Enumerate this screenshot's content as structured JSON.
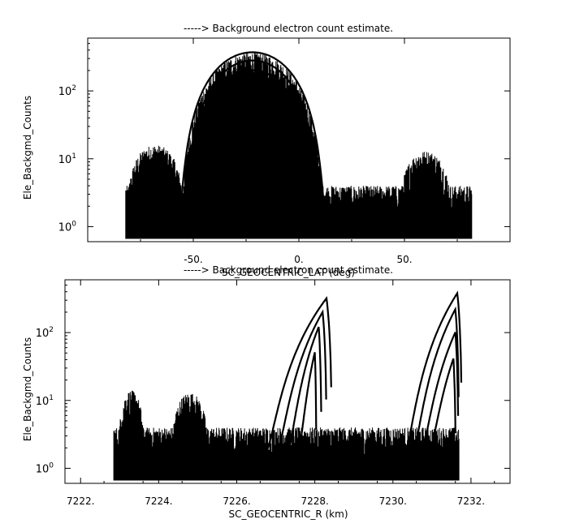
{
  "chart_data": [
    {
      "type": "line",
      "title": "-----> Background electron count estimate.",
      "xlabel": "SC_GEOCENTRIC_LAT (deg)",
      "ylabel": "Ele_Backgmd_Counts",
      "xlim": [
        -100,
        100
      ],
      "ylim": [
        0.6,
        600
      ],
      "yscale": "log",
      "x_ticks": [
        {
          "value": -50,
          "label": "-50."
        },
        {
          "value": 0,
          "label": "0."
        },
        {
          "value": 50,
          "label": "50."
        }
      ],
      "y_ticks": [
        {
          "value": 1,
          "base": "10",
          "exp": "0"
        },
        {
          "value": 10,
          "base": "10",
          "exp": "1"
        },
        {
          "value": 100,
          "base": "10",
          "exp": "2"
        }
      ],
      "series_summary": {
        "x_range": [
          -82,
          82
        ],
        "noise_floor": [
          1,
          4
        ],
        "arcs": [
          {
            "center": -22,
            "half_width": 35,
            "peak": 370
          },
          {
            "center": -22,
            "half_width": 33,
            "peak": 280
          },
          {
            "center": -22,
            "half_width": 31,
            "peak": 200
          },
          {
            "center": -21,
            "half_width": 28,
            "peak": 120
          },
          {
            "center": -20,
            "half_width": 26,
            "peak": 50
          },
          {
            "center": -18,
            "half_width": 24,
            "peak": 25
          },
          {
            "center": -18,
            "half_width": 22,
            "peak": 12
          }
        ],
        "side_bumps": [
          {
            "center": -68,
            "half_width": 14,
            "peak": 15
          },
          {
            "center": 60,
            "half_width": 13,
            "peak": 12
          }
        ]
      },
      "grid": false
    },
    {
      "type": "line",
      "title": "-----> Background electron count estimate.",
      "xlabel": "SC_GEOCENTRIC_R (km)",
      "ylabel": "Ele_Backgmd_Counts",
      "xlim": [
        7221.6,
        7233.0
      ],
      "ylim": [
        0.6,
        600
      ],
      "yscale": "log",
      "x_ticks": [
        {
          "value": 7222,
          "label": "7222."
        },
        {
          "value": 7224,
          "label": "7224."
        },
        {
          "value": 7226,
          "label": "7226."
        },
        {
          "value": 7228,
          "label": "7228."
        },
        {
          "value": 7230,
          "label": "7230."
        },
        {
          "value": 7232,
          "label": "7232."
        }
      ],
      "y_ticks": [
        {
          "value": 1,
          "base": "10",
          "exp": "0"
        },
        {
          "value": 10,
          "base": "10",
          "exp": "1"
        },
        {
          "value": 100,
          "base": "10",
          "exp": "2"
        }
      ],
      "series_summary": {
        "x_range": [
          7222.85,
          7231.7
        ],
        "noise_floor": [
          1,
          4
        ],
        "ramps_left": [
          {
            "start": 7226.6,
            "end": 7228.3,
            "peak": 320
          },
          {
            "start": 7226.9,
            "end": 7228.2,
            "peak": 200
          },
          {
            "start": 7227.2,
            "end": 7228.1,
            "peak": 120
          },
          {
            "start": 7227.5,
            "end": 7228.0,
            "peak": 50
          }
        ],
        "ramps_right": [
          {
            "start": 7230.2,
            "end": 7231.65,
            "peak": 380
          },
          {
            "start": 7230.4,
            "end": 7231.6,
            "peak": 220
          },
          {
            "start": 7230.6,
            "end": 7231.6,
            "peak": 100
          },
          {
            "start": 7230.8,
            "end": 7231.55,
            "peak": 40
          }
        ],
        "side_bumps": [
          {
            "center": 7223.3,
            "half_width": 0.35,
            "peak": 13
          },
          {
            "center": 7224.8,
            "half_width": 0.5,
            "peak": 12
          }
        ]
      },
      "grid": false
    }
  ]
}
